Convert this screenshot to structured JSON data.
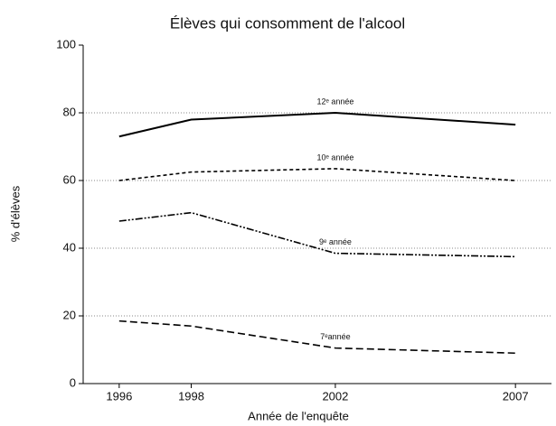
{
  "chart_data": {
    "type": "line",
    "title": "Élèves qui consomment de l'alcool",
    "x_label": "Année de l'enquête",
    "y_label": "% d'élèves",
    "x": [
      1996,
      1998,
      2002,
      2007
    ],
    "series": [
      {
        "name": "12ᵉ année",
        "color": "#000000",
        "dash": "solid",
        "values": [
          73,
          78,
          80,
          76.5
        ]
      },
      {
        "name": "10ᵉ année",
        "color": "#000000",
        "dash": "dashed",
        "values": [
          60,
          62.5,
          63.5,
          60
        ]
      },
      {
        "name": "9ᵉ année",
        "color": "#000000",
        "dash": "dash-dot-dot",
        "values": [
          48,
          50.5,
          38.5,
          37.5
        ]
      },
      {
        "name": "7ᵉannée",
        "color": "#000000",
        "dash": "long-dash",
        "values": [
          18.5,
          17,
          10.5,
          9
        ]
      }
    ],
    "xlim": [
      1995,
      2008
    ],
    "xticks": [
      1996,
      1998,
      2002,
      2007
    ],
    "ylim": [
      0,
      100
    ],
    "yticks": [
      0,
      20,
      40,
      60,
      80,
      100
    ],
    "grid": true
  }
}
